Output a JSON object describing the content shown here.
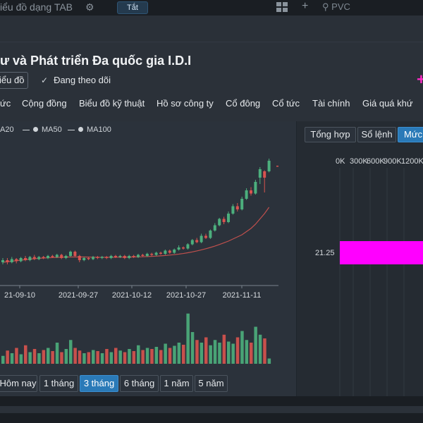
{
  "top_tab": "iểu đồ dạng TAB",
  "top_pill": "Tắt",
  "top_search": "PVC",
  "company_title": "ư và Phát triển Đa quốc gia I.D.I",
  "chart_button": "iểu đồ",
  "follow_label": "Đang theo dõi",
  "nav_tabs": [
    "ức",
    "Cộng đồng",
    "Biểu đồ kỹ thuật",
    "Hồ sơ công ty",
    "Cổ đông",
    "Cổ tức",
    "Tài chính",
    "Giá quá khứ"
  ],
  "legend": [
    "A20",
    "MA50",
    "MA100"
  ],
  "right_tabs": [
    "Tổng hợp",
    "Sổ lệnh",
    "Mức"
  ],
  "depth": {
    "x_labels": [
      "0K",
      "300K",
      "600K",
      "900K",
      "1200K"
    ],
    "price_label": "21.25",
    "bar_color": "#ff00ff"
  },
  "periods": [
    "Hôm nay",
    "1 tháng",
    "3 tháng",
    "6 tháng",
    "1 năm",
    "5 năm"
  ],
  "active_period": "3 tháng",
  "chart_data": {
    "type": "candlestick",
    "x_tick_labels": [
      "21-09-10",
      "2021-09-27",
      "2021-10-12",
      "2021-10-27",
      "2021-11-11"
    ],
    "up_color": "#4caf7d",
    "down_color": "#d9534f",
    "ma_color": "#c0504d",
    "candles": [
      {
        "o": 0.0,
        "c": 0.02,
        "h": 0.04,
        "l": -0.02
      },
      {
        "o": 0.02,
        "c": 0.0,
        "h": 0.04,
        "l": -0.02
      },
      {
        "o": 0.0,
        "c": 0.03,
        "h": 0.05,
        "l": -0.01
      },
      {
        "o": 0.03,
        "c": 0.01,
        "h": 0.04,
        "l": -0.01
      },
      {
        "o": 0.01,
        "c": 0.04,
        "h": 0.05,
        "l": 0.0
      },
      {
        "o": 0.04,
        "c": 0.02,
        "h": 0.06,
        "l": 0.01
      },
      {
        "o": 0.02,
        "c": 0.05,
        "h": 0.06,
        "l": 0.01
      },
      {
        "o": 0.05,
        "c": 0.03,
        "h": 0.07,
        "l": 0.02
      },
      {
        "o": 0.03,
        "c": 0.05,
        "h": 0.06,
        "l": 0.02
      },
      {
        "o": 0.05,
        "c": 0.04,
        "h": 0.06,
        "l": 0.03
      },
      {
        "o": 0.04,
        "c": 0.06,
        "h": 0.07,
        "l": 0.03
      },
      {
        "o": 0.06,
        "c": 0.05,
        "h": 0.07,
        "l": 0.04
      },
      {
        "o": 0.05,
        "c": 0.07,
        "h": 0.08,
        "l": 0.04
      },
      {
        "o": 0.07,
        "c": 0.04,
        "h": 0.08,
        "l": 0.03
      },
      {
        "o": 0.04,
        "c": 0.06,
        "h": 0.07,
        "l": 0.03
      },
      {
        "o": 0.06,
        "c": 0.1,
        "h": 0.11,
        "l": 0.05
      },
      {
        "o": 0.1,
        "c": 0.06,
        "h": 0.11,
        "l": 0.05
      },
      {
        "o": 0.06,
        "c": 0.02,
        "h": 0.07,
        "l": 0.0
      },
      {
        "o": 0.02,
        "c": 0.04,
        "h": 0.05,
        "l": 0.01
      },
      {
        "o": 0.04,
        "c": 0.03,
        "h": 0.05,
        "l": 0.02
      },
      {
        "o": 0.03,
        "c": 0.05,
        "h": 0.06,
        "l": 0.02
      },
      {
        "o": 0.05,
        "c": 0.04,
        "h": 0.06,
        "l": 0.03
      },
      {
        "o": 0.04,
        "c": 0.05,
        "h": 0.06,
        "l": 0.03
      },
      {
        "o": 0.05,
        "c": 0.04,
        "h": 0.06,
        "l": 0.03
      },
      {
        "o": 0.04,
        "c": 0.06,
        "h": 0.07,
        "l": 0.03
      },
      {
        "o": 0.06,
        "c": 0.05,
        "h": 0.07,
        "l": 0.04
      },
      {
        "o": 0.05,
        "c": 0.06,
        "h": 0.07,
        "l": 0.04
      },
      {
        "o": 0.06,
        "c": 0.04,
        "h": 0.07,
        "l": 0.03
      },
      {
        "o": 0.04,
        "c": 0.06,
        "h": 0.07,
        "l": 0.03
      },
      {
        "o": 0.06,
        "c": 0.05,
        "h": 0.07,
        "l": 0.04
      },
      {
        "o": 0.05,
        "c": 0.07,
        "h": 0.08,
        "l": 0.04
      },
      {
        "o": 0.07,
        "c": 0.06,
        "h": 0.08,
        "l": 0.05
      },
      {
        "o": 0.06,
        "c": 0.08,
        "h": 0.09,
        "l": 0.05
      },
      {
        "o": 0.08,
        "c": 0.07,
        "h": 0.09,
        "l": 0.06
      },
      {
        "o": 0.07,
        "c": 0.09,
        "h": 0.1,
        "l": 0.06
      },
      {
        "o": 0.09,
        "c": 0.08,
        "h": 0.1,
        "l": 0.07
      },
      {
        "o": 0.08,
        "c": 0.11,
        "h": 0.12,
        "l": 0.07
      },
      {
        "o": 0.11,
        "c": 0.09,
        "h": 0.12,
        "l": 0.08
      },
      {
        "o": 0.09,
        "c": 0.12,
        "h": 0.13,
        "l": 0.08
      },
      {
        "o": 0.12,
        "c": 0.14,
        "h": 0.16,
        "l": 0.11
      },
      {
        "o": 0.14,
        "c": 0.13,
        "h": 0.15,
        "l": 0.12
      },
      {
        "o": 0.13,
        "c": 0.17,
        "h": 0.18,
        "l": 0.12
      },
      {
        "o": 0.17,
        "c": 0.21,
        "h": 0.22,
        "l": 0.16
      },
      {
        "o": 0.21,
        "c": 0.19,
        "h": 0.23,
        "l": 0.18
      },
      {
        "o": 0.19,
        "c": 0.25,
        "h": 0.27,
        "l": 0.18
      },
      {
        "o": 0.25,
        "c": 0.23,
        "h": 0.27,
        "l": 0.22
      },
      {
        "o": 0.23,
        "c": 0.3,
        "h": 0.31,
        "l": 0.22
      },
      {
        "o": 0.3,
        "c": 0.35,
        "h": 0.37,
        "l": 0.29
      },
      {
        "o": 0.35,
        "c": 0.41,
        "h": 0.42,
        "l": 0.34
      },
      {
        "o": 0.41,
        "c": 0.38,
        "h": 0.43,
        "l": 0.36
      },
      {
        "o": 0.38,
        "c": 0.46,
        "h": 0.48,
        "l": 0.37
      },
      {
        "o": 0.46,
        "c": 0.53,
        "h": 0.55,
        "l": 0.45
      },
      {
        "o": 0.53,
        "c": 0.5,
        "h": 0.56,
        "l": 0.48
      },
      {
        "o": 0.5,
        "c": 0.6,
        "h": 0.62,
        "l": 0.49
      },
      {
        "o": 0.6,
        "c": 0.68,
        "h": 0.7,
        "l": 0.59
      },
      {
        "o": 0.68,
        "c": 0.65,
        "h": 0.71,
        "l": 0.63
      },
      {
        "o": 0.65,
        "c": 0.76,
        "h": 0.78,
        "l": 0.64
      },
      {
        "o": 0.8,
        "c": 0.88,
        "h": 0.9,
        "l": 0.74
      },
      {
        "o": 0.86,
        "c": 0.8,
        "h": 0.87,
        "l": 0.66
      },
      {
        "o": 0.86,
        "c": 0.96,
        "h": 0.98,
        "l": 0.85
      }
    ],
    "ma": [
      0.0,
      0.005,
      0.01,
      0.015,
      0.02,
      0.025,
      0.03,
      0.034,
      0.037,
      0.04,
      0.042,
      0.044,
      0.046,
      0.048,
      0.049,
      0.05,
      0.05,
      0.05,
      0.05,
      0.049,
      0.048,
      0.047,
      0.047,
      0.047,
      0.047,
      0.047,
      0.048,
      0.048,
      0.049,
      0.05,
      0.051,
      0.052,
      0.054,
      0.056,
      0.058,
      0.061,
      0.064,
      0.068,
      0.072,
      0.077,
      0.083,
      0.09,
      0.098,
      0.107,
      0.117,
      0.128,
      0.14,
      0.153,
      0.168,
      0.184,
      0.2,
      0.22,
      0.24,
      0.26,
      0.29,
      0.32,
      0.36,
      0.41,
      0.46,
      0.52
    ],
    "volumes": [
      0.15,
      0.25,
      0.2,
      0.3,
      0.18,
      0.35,
      0.22,
      0.28,
      0.2,
      0.26,
      0.3,
      0.24,
      0.4,
      0.22,
      0.28,
      0.45,
      0.3,
      0.25,
      0.2,
      0.22,
      0.26,
      0.24,
      0.2,
      0.28,
      0.22,
      0.3,
      0.25,
      0.22,
      0.28,
      0.24,
      0.35,
      0.26,
      0.3,
      0.28,
      0.32,
      0.26,
      0.38,
      0.3,
      0.34,
      0.4,
      0.36,
      0.95,
      0.6,
      0.45,
      0.4,
      0.5,
      0.35,
      0.45,
      0.4,
      0.55,
      0.42,
      0.38,
      0.5,
      0.62,
      0.45,
      0.4,
      0.7,
      0.55,
      0.48,
      0.1
    ]
  }
}
